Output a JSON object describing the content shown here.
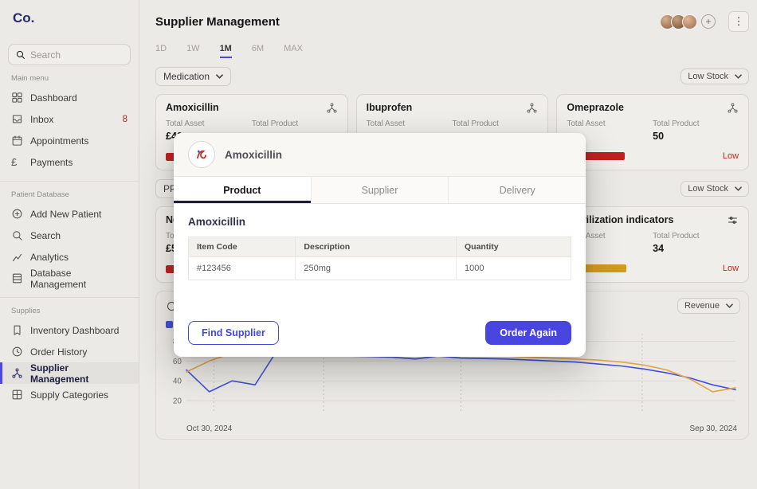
{
  "brand": {
    "logo": "Co."
  },
  "sidebar": {
    "search": {
      "placeholder": "Search"
    },
    "sections": [
      {
        "label": "Main menu",
        "items": [
          {
            "label": "Dashboard"
          },
          {
            "label": "Inbox",
            "badge": "8"
          },
          {
            "label": "Appointments"
          },
          {
            "label": "Payments"
          }
        ]
      },
      {
        "label": "Patient Database",
        "items": [
          {
            "label": "Add New Patient"
          },
          {
            "label": "Search"
          },
          {
            "label": "Analytics"
          },
          {
            "label": "Database Management"
          }
        ]
      },
      {
        "label": "Supplies",
        "items": [
          {
            "label": "Inventory Dashboard"
          },
          {
            "label": "Order History"
          },
          {
            "label": "Supplier Management",
            "active": true
          },
          {
            "label": "Supply Categories"
          }
        ]
      }
    ]
  },
  "header": {
    "title": "Supplier Management",
    "add_label": "+",
    "menu_label": "⋮"
  },
  "time_tabs": {
    "items": [
      "1D",
      "1W",
      "1M",
      "6M",
      "MAX"
    ],
    "active": "1M"
  },
  "filters": {
    "row1_category": "Medication",
    "row1_stock": "Low Stock",
    "row2_category": "PPE",
    "row2_stock": "Low Stock"
  },
  "cards": [
    {
      "title": "Amoxicillin",
      "asset_label": "Total Asset",
      "asset_value": "£40",
      "product_label": "Total Product",
      "product_value": "",
      "status": "",
      "bar_pct": 28,
      "bar_color": "#c02020"
    },
    {
      "title": "Ibuprofen",
      "asset_label": "Total Asset",
      "asset_value": "",
      "product_label": "Total Product",
      "product_value": "",
      "status": "",
      "bar_pct": 0,
      "bar_color": "#c02020"
    },
    {
      "title": "Omeprazole",
      "asset_label": "Total Asset",
      "asset_value": "",
      "product_label": "Total Product",
      "product_value": "50",
      "status": "Low",
      "bar_pct": 40,
      "bar_color": "#c02020"
    },
    {
      "title": "Nel",
      "asset_label": "Total Asset",
      "asset_value": "£56",
      "product_label": "Total Product",
      "product_value": "",
      "status": "",
      "bar_pct": 30,
      "bar_color": "#c02020"
    },
    {
      "title": "Sterilization indicators",
      "asset_label": "Total Asset",
      "asset_value": "",
      "product_label": "Total Product",
      "product_value": "34",
      "status": "Low",
      "bar_pct": 41,
      "bar_color": "#d29b1c"
    }
  ],
  "modal": {
    "title": "Amoxicillin",
    "tabs": [
      {
        "label": "Product",
        "active": true
      },
      {
        "label": "Supplier",
        "active": false
      },
      {
        "label": "Delivery",
        "active": false
      }
    ],
    "section_title": "Amoxicillin",
    "table": {
      "headers": [
        "Item Code",
        "Description",
        "Quantity"
      ],
      "rows": [
        [
          "#123456",
          "250mg",
          "1000"
        ]
      ]
    },
    "buttons": {
      "secondary": "Find Supplier",
      "primary": "Order Again"
    }
  },
  "chart_data": {
    "type": "line",
    "title": "",
    "y_ticks": [
      80,
      60,
      40,
      20
    ],
    "y_range": [
      12,
      86
    ],
    "x_start_label": "Oct 30, 2024",
    "x_end_label": "Sep 30, 2024",
    "grid": "horizontal solid lines, dashed vertical guides",
    "vertical_guides": [
      0.05,
      0.25,
      0.5,
      0.83
    ],
    "legend_position": "top-left",
    "legend": [
      {
        "name": "Amoxicillin",
        "color": "#4150d8"
      }
    ],
    "metric_dropdown": "Revenue",
    "series": [
      {
        "name": "Amoxicillin",
        "color": "#4150d8",
        "values": [
          51,
          29,
          40,
          36,
          72,
          74,
          68,
          65,
          64.5,
          64,
          62,
          65,
          63,
          62.5,
          62,
          61,
          60,
          59,
          57,
          55,
          52,
          48,
          43,
          36,
          31
        ]
      },
      {
        "name": "",
        "color": "#e2a446",
        "values": [
          49,
          60,
          68,
          71,
          72,
          71,
          70,
          69.5,
          69,
          68,
          67.5,
          67,
          66,
          65.5,
          65,
          64,
          63,
          62,
          61,
          59,
          56,
          51,
          42,
          29,
          33
        ]
      }
    ]
  }
}
